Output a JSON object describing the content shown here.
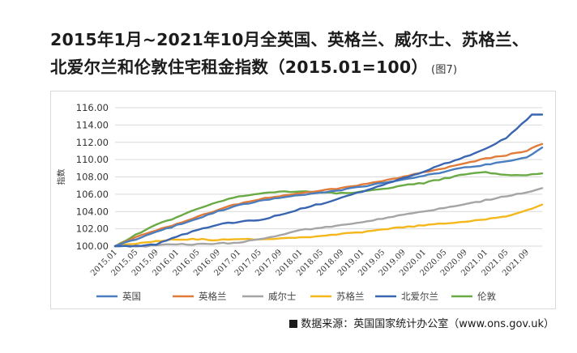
{
  "title": {
    "line1": "2015年1月~2021年10月全英国、英格兰、威尔士、苏格兰、",
    "line2": "北爱尔兰和伦敦住宅租金指数（2015.01=100）",
    "figure_label": "(图7)"
  },
  "source": "数据来源：英国国家统计办公室（www.ons.gov.uk）",
  "colors": {
    "英国": "#4a7ebf",
    "英格兰": "#e07b39",
    "威尔士": "#a5a5a5",
    "苏格兰": "#f5b81c",
    "北爱尔兰": "#3a65b0",
    "伦敦": "#6aaa44"
  },
  "chart_data": {
    "type": "line",
    "title": "2015年1月~2021年10月全英国、英格兰、威尔士、苏格兰、北爱尔兰和伦敦住宅租金指数（2015.01=100）",
    "xlabel": "",
    "ylabel": "指数",
    "ylim": [
      100,
      116
    ],
    "yticks": [
      "100.00",
      "102.00",
      "104.00",
      "106.00",
      "108.00",
      "110.00",
      "112.00",
      "114.00",
      "116.00"
    ],
    "xticks": [
      "2015.01",
      "2015.05",
      "2015.09",
      "2016.01",
      "2016.05",
      "2016.09",
      "2017.01",
      "2017.05",
      "2017.09",
      "2018.01",
      "2018.05",
      "2018.09",
      "2019.01",
      "2019.05",
      "2019.09",
      "2020.01",
      "2020.05",
      "2020.09",
      "2021.01",
      "2021.05",
      "2021.09"
    ],
    "grid": true,
    "legend": "bottom",
    "series": [
      {
        "name": "英国",
        "keypoints": [
          [
            0,
            100.0
          ],
          [
            4,
            100.8
          ],
          [
            8,
            101.6
          ],
          [
            12,
            102.4
          ],
          [
            16,
            103.2
          ],
          [
            20,
            104.0
          ],
          [
            24,
            104.7
          ],
          [
            28,
            105.2
          ],
          [
            32,
            105.6
          ],
          [
            36,
            105.9
          ],
          [
            40,
            106.2
          ],
          [
            44,
            106.5
          ],
          [
            48,
            106.9
          ],
          [
            52,
            107.3
          ],
          [
            56,
            107.7
          ],
          [
            60,
            108.1
          ],
          [
            64,
            108.6
          ],
          [
            68,
            109.1
          ],
          [
            72,
            109.4
          ],
          [
            76,
            109.8
          ],
          [
            80,
            110.3
          ],
          [
            81,
            110.6
          ],
          [
            82,
            111.0
          ],
          [
            83,
            111.4
          ]
        ]
      },
      {
        "name": "英格兰",
        "keypoints": [
          [
            0,
            100.0
          ],
          [
            4,
            101.0
          ],
          [
            8,
            101.8
          ],
          [
            12,
            102.6
          ],
          [
            16,
            103.4
          ],
          [
            20,
            104.2
          ],
          [
            24,
            104.9
          ],
          [
            28,
            105.4
          ],
          [
            32,
            105.8
          ],
          [
            36,
            106.1
          ],
          [
            40,
            106.4
          ],
          [
            44,
            106.7
          ],
          [
            48,
            107.1
          ],
          [
            52,
            107.5
          ],
          [
            56,
            108.0
          ],
          [
            60,
            108.5
          ],
          [
            64,
            109.0
          ],
          [
            68,
            109.6
          ],
          [
            72,
            110.1
          ],
          [
            76,
            110.5
          ],
          [
            80,
            111.0
          ],
          [
            81,
            111.3
          ],
          [
            82,
            111.6
          ],
          [
            83,
            111.8
          ]
        ]
      },
      {
        "name": "威尔士",
        "keypoints": [
          [
            0,
            100.0
          ],
          [
            6,
            100.0
          ],
          [
            8,
            100.1
          ],
          [
            12,
            100.2
          ],
          [
            16,
            100.2
          ],
          [
            20,
            100.3
          ],
          [
            24,
            100.4
          ],
          [
            28,
            100.8
          ],
          [
            32,
            101.2
          ],
          [
            36,
            101.9
          ],
          [
            40,
            102.1
          ],
          [
            44,
            102.4
          ],
          [
            48,
            102.8
          ],
          [
            52,
            103.2
          ],
          [
            56,
            103.6
          ],
          [
            60,
            104.0
          ],
          [
            64,
            104.4
          ],
          [
            68,
            104.8
          ],
          [
            72,
            105.3
          ],
          [
            76,
            105.8
          ],
          [
            80,
            106.2
          ],
          [
            83,
            106.7
          ]
        ]
      },
      {
        "name": "苏格兰",
        "keypoints": [
          [
            0,
            100.0
          ],
          [
            4,
            100.3
          ],
          [
            8,
            100.6
          ],
          [
            12,
            100.8
          ],
          [
            16,
            100.8
          ],
          [
            20,
            100.7
          ],
          [
            24,
            100.8
          ],
          [
            28,
            100.8
          ],
          [
            32,
            100.9
          ],
          [
            36,
            101.0
          ],
          [
            40,
            101.2
          ],
          [
            44,
            101.4
          ],
          [
            48,
            101.6
          ],
          [
            52,
            101.9
          ],
          [
            56,
            102.2
          ],
          [
            60,
            102.4
          ],
          [
            64,
            102.6
          ],
          [
            68,
            102.8
          ],
          [
            72,
            103.1
          ],
          [
            76,
            103.5
          ],
          [
            80,
            104.1
          ],
          [
            83,
            104.8
          ]
        ]
      },
      {
        "name": "北爱尔兰",
        "keypoints": [
          [
            0,
            100.0
          ],
          [
            5,
            100.0
          ],
          [
            8,
            100.2
          ],
          [
            12,
            101.1
          ],
          [
            16,
            101.9
          ],
          [
            20,
            102.5
          ],
          [
            24,
            102.8
          ],
          [
            28,
            103.0
          ],
          [
            32,
            103.6
          ],
          [
            36,
            104.3
          ],
          [
            40,
            104.9
          ],
          [
            44,
            105.6
          ],
          [
            48,
            106.3
          ],
          [
            52,
            107.1
          ],
          [
            56,
            107.9
          ],
          [
            60,
            108.6
          ],
          [
            64,
            109.5
          ],
          [
            68,
            110.3
          ],
          [
            72,
            111.2
          ],
          [
            76,
            112.5
          ],
          [
            78,
            113.5
          ],
          [
            80,
            114.6
          ],
          [
            81,
            115.2
          ],
          [
            83,
            115.2
          ]
        ]
      },
      {
        "name": "伦敦",
        "keypoints": [
          [
            0,
            100.0
          ],
          [
            4,
            101.3
          ],
          [
            8,
            102.5
          ],
          [
            12,
            103.3
          ],
          [
            16,
            104.3
          ],
          [
            20,
            105.1
          ],
          [
            24,
            105.7
          ],
          [
            28,
            106.1
          ],
          [
            32,
            106.3
          ],
          [
            36,
            106.3
          ],
          [
            40,
            106.2
          ],
          [
            44,
            106.1
          ],
          [
            48,
            106.3
          ],
          [
            52,
            106.6
          ],
          [
            56,
            107.0
          ],
          [
            60,
            107.3
          ],
          [
            64,
            107.8
          ],
          [
            68,
            108.3
          ],
          [
            72,
            108.5
          ],
          [
            74,
            108.4
          ],
          [
            76,
            108.2
          ],
          [
            80,
            108.2
          ],
          [
            83,
            108.4
          ]
        ]
      }
    ]
  }
}
